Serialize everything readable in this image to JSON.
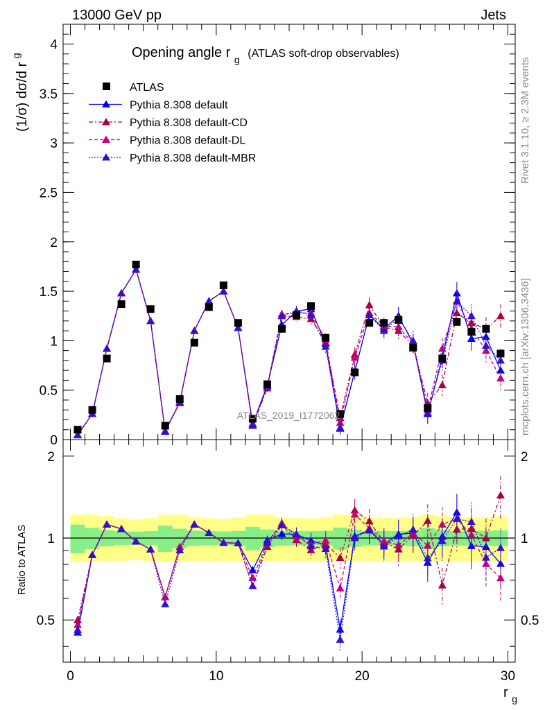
{
  "header": {
    "left": "13000 GeV pp",
    "right": "Jets"
  },
  "side_labels": {
    "rivet": "Rivet 3.1.10, ≥ 2.3M events",
    "mcplots": "mcplots.cern.ch [arXiv:1306.3436]"
  },
  "watermark": "ATLAS_2019_I1772062",
  "chart_data": {
    "type": "line",
    "title": {
      "main": "Opening angle r",
      "sub": "g",
      "extra": "(ATLAS soft-drop observables)"
    },
    "main_panel": {
      "ylabel": "(1/σ) dσ/d r",
      "ylabel_sub": "g",
      "ylim": [
        0,
        4.2
      ],
      "yticks": [
        "0",
        "0.5",
        "1",
        "1.5",
        "2",
        "2.5",
        "3",
        "3.5",
        "4"
      ]
    },
    "ratio_panel": {
      "ylabel": "Ratio to ATLAS",
      "ylim": [
        0.35,
        2.3
      ],
      "log": true,
      "yticks": [
        "0.5",
        "1",
        "2"
      ]
    },
    "xaxis": {
      "label": "r",
      "label_sub": "g",
      "xlim": [
        -0.5,
        30.5
      ],
      "ticks": [
        "0",
        "10",
        "20",
        "30"
      ]
    },
    "x": [
      0.5,
      1.5,
      2.5,
      3.5,
      4.5,
      5.5,
      6.5,
      7.5,
      8.5,
      9.5,
      10.5,
      11.5,
      12.5,
      13.5,
      14.5,
      15.5,
      16.5,
      17.5,
      18.5,
      19.5,
      20.5,
      21.5,
      22.5,
      23.5,
      24.5,
      25.5,
      26.5,
      27.5,
      28.5,
      29.5
    ],
    "series": [
      {
        "name": "ATLAS",
        "color": "#000000",
        "values": [
          0.1,
          0.3,
          0.82,
          1.37,
          1.77,
          1.32,
          0.14,
          0.41,
          0.98,
          1.34,
          1.56,
          1.18,
          0.21,
          0.56,
          1.12,
          1.26,
          1.35,
          1.03,
          0.26,
          0.68,
          1.18,
          1.18,
          1.21,
          0.93,
          0.32,
          0.82,
          1.19,
          1.09,
          1.12,
          0.87
        ]
      },
      {
        "name": "Pythia 8.308 default",
        "color": "#0000ff",
        "values": [
          0.045,
          0.26,
          0.92,
          1.48,
          1.72,
          1.2,
          0.085,
          0.38,
          1.1,
          1.4,
          1.5,
          1.13,
          0.16,
          0.55,
          1.16,
          1.3,
          1.32,
          0.97,
          0.12,
          0.69,
          1.26,
          1.12,
          1.25,
          0.97,
          0.26,
          0.83,
          1.48,
          1.02,
          1.04,
          0.7
        ]
      },
      {
        "name": "Pythia 8.308 default-CD",
        "color": "#aa0044",
        "values": [
          0.05,
          0.26,
          0.92,
          1.48,
          1.72,
          1.2,
          0.085,
          0.38,
          1.1,
          1.4,
          1.5,
          1.13,
          0.14,
          0.52,
          1.25,
          1.24,
          1.22,
          0.98,
          0.22,
          0.86,
          1.36,
          1.14,
          1.1,
          0.95,
          0.37,
          0.55,
          1.28,
          1.18,
          1.12,
          1.25
        ]
      },
      {
        "name": "Pythia 8.308 default-DL",
        "color": "#cc0077",
        "values": [
          0.048,
          0.26,
          0.92,
          1.48,
          1.72,
          1.2,
          0.085,
          0.38,
          1.1,
          1.4,
          1.5,
          1.13,
          0.15,
          0.54,
          1.27,
          1.28,
          1.28,
          1.01,
          0.17,
          0.83,
          1.28,
          1.15,
          1.14,
          0.97,
          0.3,
          0.92,
          1.4,
          1.12,
          0.9,
          0.62
        ]
      },
      {
        "name": "Pythia 8.308 default-MBR",
        "color": "#3311cc",
        "values": [
          0.046,
          0.26,
          0.92,
          1.48,
          1.72,
          1.2,
          0.08,
          0.37,
          1.1,
          1.4,
          1.5,
          1.13,
          0.14,
          0.54,
          1.25,
          1.3,
          1.26,
          0.94,
          0.11,
          0.68,
          1.26,
          1.1,
          1.23,
          1.0,
          0.27,
          0.8,
          1.4,
          1.25,
          0.95,
          0.8
        ]
      }
    ]
  }
}
